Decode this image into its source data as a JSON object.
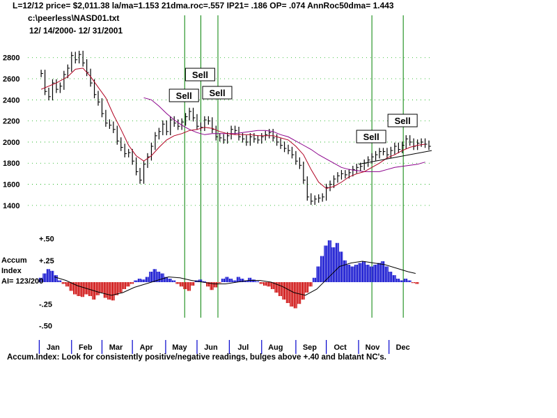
{
  "header": {
    "line1": "L=12/12  price= $2,011.38  la/ma=1.153 21dma.roc=.557 IP21= .186 OP= .074 AnnRoc50dma= 1.443",
    "file": "c:\\peerless\\NASD01.txt",
    "range": "12/ 14/2000- 12/ 31/2001"
  },
  "footer": {
    "note": "Accum.Index: Look for consistently positive/negative readings, bulges above +.40 and blatant NC's."
  },
  "colors": {
    "price_bars": "#000000",
    "ma21": "#b00020",
    "ma50": "#8b008b",
    "signal_lines": "#008000",
    "ai_positive": "#0000cc",
    "ai_negative": "#cc0000",
    "month_ticks": "#0000cc"
  },
  "chart_data": [
    {
      "type": "line",
      "name": "price",
      "ylim": [
        1300,
        2950
      ],
      "yticks": [
        "2800",
        "2600",
        "2400",
        "2200",
        "2000",
        "1800",
        "1600",
        "1400"
      ],
      "ytick_values": [
        2800,
        2600,
        2400,
        2200,
        2000,
        1800,
        1600,
        1400
      ],
      "months": [
        "Jan",
        "Feb",
        "Mar",
        "Apr",
        "May",
        "Jun",
        "Jul",
        "Aug",
        "Sep",
        "Oct",
        "Nov",
        "Dec"
      ],
      "signals": [
        {
          "label": "Sell",
          "day": 165
        },
        {
          "label": "Sell",
          "day": 182
        },
        {
          "label": "Sell",
          "day": 200
        },
        {
          "label": "Sell",
          "day": 362
        },
        {
          "label": "Sell",
          "day": 395
        }
      ],
      "closes": [
        [
          14,
          2650
        ],
        [
          18,
          2480
        ],
        [
          22,
          2430
        ],
        [
          26,
          2560
        ],
        [
          30,
          2500
        ],
        [
          34,
          2530
        ],
        [
          38,
          2640
        ],
        [
          42,
          2700
        ],
        [
          46,
          2820
        ],
        [
          50,
          2780
        ],
        [
          54,
          2830
        ],
        [
          58,
          2750
        ],
        [
          62,
          2660
        ],
        [
          66,
          2560
        ],
        [
          70,
          2450
        ],
        [
          74,
          2380
        ],
        [
          78,
          2270
        ],
        [
          82,
          2180
        ],
        [
          86,
          2160
        ],
        [
          90,
          2120
        ],
        [
          94,
          2010
        ],
        [
          98,
          1950
        ],
        [
          102,
          1890
        ],
        [
          106,
          1900
        ],
        [
          110,
          1820
        ],
        [
          114,
          1720
        ],
        [
          118,
          1640
        ],
        [
          122,
          1790
        ],
        [
          126,
          1860
        ],
        [
          130,
          1960
        ],
        [
          134,
          2060
        ],
        [
          138,
          2100
        ],
        [
          142,
          2170
        ],
        [
          146,
          2100
        ],
        [
          150,
          2210
        ],
        [
          154,
          2180
        ],
        [
          158,
          2150
        ],
        [
          162,
          2190
        ],
        [
          166,
          2240
        ],
        [
          170,
          2290
        ],
        [
          174,
          2230
        ],
        [
          178,
          2150
        ],
        [
          182,
          2140
        ],
        [
          186,
          2210
        ],
        [
          190,
          2200
        ],
        [
          194,
          2120
        ],
        [
          198,
          2050
        ],
        [
          202,
          2040
        ],
        [
          206,
          2020
        ],
        [
          210,
          2060
        ],
        [
          214,
          2120
        ],
        [
          218,
          2110
        ],
        [
          222,
          2050
        ],
        [
          226,
          2030
        ],
        [
          230,
          2000
        ],
        [
          234,
          2050
        ],
        [
          238,
          2030
        ],
        [
          242,
          2020
        ],
        [
          246,
          2050
        ],
        [
          250,
          2070
        ],
        [
          254,
          2090
        ],
        [
          258,
          2040
        ],
        [
          262,
          2000
        ],
        [
          266,
          1970
        ],
        [
          270,
          1940
        ],
        [
          274,
          1920
        ],
        [
          278,
          1880
        ],
        [
          282,
          1820
        ],
        [
          286,
          1780
        ],
        [
          290,
          1640
        ],
        [
          294,
          1480
        ],
        [
          298,
          1440
        ],
        [
          302,
          1460
        ],
        [
          306,
          1470
        ],
        [
          310,
          1480
        ],
        [
          314,
          1570
        ],
        [
          318,
          1600
        ],
        [
          322,
          1650
        ],
        [
          326,
          1680
        ],
        [
          330,
          1700
        ],
        [
          334,
          1690
        ],
        [
          338,
          1710
        ],
        [
          342,
          1740
        ],
        [
          346,
          1760
        ],
        [
          350,
          1770
        ],
        [
          354,
          1800
        ],
        [
          358,
          1830
        ],
        [
          362,
          1860
        ],
        [
          366,
          1880
        ],
        [
          370,
          1910
        ],
        [
          374,
          1910
        ],
        [
          378,
          1880
        ],
        [
          382,
          1920
        ],
        [
          386,
          1960
        ],
        [
          390,
          1930
        ],
        [
          394,
          1970
        ],
        [
          398,
          2030
        ],
        [
          402,
          2000
        ],
        [
          406,
          1960
        ],
        [
          410,
          1990
        ],
        [
          414,
          2000
        ],
        [
          418,
          1980
        ],
        [
          422,
          1960
        ]
      ],
      "ma21": [
        [
          14,
          2500
        ],
        [
          30,
          2560
        ],
        [
          42,
          2620
        ],
        [
          50,
          2690
        ],
        [
          58,
          2700
        ],
        [
          66,
          2620
        ],
        [
          74,
          2520
        ],
        [
          82,
          2420
        ],
        [
          90,
          2260
        ],
        [
          98,
          2120
        ],
        [
          106,
          1970
        ],
        [
          114,
          1870
        ],
        [
          122,
          1820
        ],
        [
          130,
          1870
        ],
        [
          138,
          1950
        ],
        [
          146,
          2020
        ],
        [
          154,
          2060
        ],
        [
          162,
          2080
        ],
        [
          170,
          2110
        ],
        [
          178,
          2120
        ],
        [
          186,
          2140
        ],
        [
          194,
          2130
        ],
        [
          202,
          2100
        ],
        [
          210,
          2080
        ],
        [
          218,
          2070
        ],
        [
          226,
          2070
        ],
        [
          234,
          2070
        ],
        [
          242,
          2060
        ],
        [
          250,
          2060
        ],
        [
          258,
          2060
        ],
        [
          266,
          2040
        ],
        [
          274,
          2020
        ],
        [
          282,
          1960
        ],
        [
          290,
          1880
        ],
        [
          298,
          1740
        ],
        [
          306,
          1620
        ],
        [
          314,
          1560
        ],
        [
          322,
          1580
        ],
        [
          330,
          1620
        ],
        [
          338,
          1670
        ],
        [
          346,
          1700
        ],
        [
          354,
          1720
        ],
        [
          362,
          1760
        ],
        [
          370,
          1800
        ],
        [
          378,
          1850
        ],
        [
          386,
          1880
        ],
        [
          394,
          1920
        ],
        [
          402,
          1950
        ],
        [
          410,
          1970
        ],
        [
          418,
          1980
        ]
      ],
      "ma50": [
        [
          122,
          2420
        ],
        [
          130,
          2400
        ],
        [
          138,
          2340
        ],
        [
          146,
          2270
        ],
        [
          154,
          2210
        ],
        [
          162,
          2160
        ],
        [
          170,
          2120
        ],
        [
          178,
          2090
        ],
        [
          186,
          2070
        ],
        [
          194,
          2080
        ],
        [
          202,
          2080
        ],
        [
          210,
          2080
        ],
        [
          218,
          2080
        ],
        [
          226,
          2090
        ],
        [
          234,
          2100
        ],
        [
          242,
          2110
        ],
        [
          250,
          2110
        ],
        [
          258,
          2100
        ],
        [
          266,
          2070
        ],
        [
          274,
          2050
        ],
        [
          282,
          2010
        ],
        [
          290,
          1970
        ],
        [
          298,
          1930
        ],
        [
          306,
          1880
        ],
        [
          314,
          1840
        ],
        [
          322,
          1800
        ],
        [
          330,
          1760
        ],
        [
          338,
          1740
        ],
        [
          346,
          1730
        ],
        [
          354,
          1720
        ],
        [
          362,
          1720
        ],
        [
          370,
          1720
        ],
        [
          378,
          1740
        ],
        [
          386,
          1760
        ],
        [
          394,
          1770
        ],
        [
          402,
          1780
        ],
        [
          410,
          1790
        ],
        [
          418,
          1810
        ]
      ],
      "trendline": [
        [
          348,
          1790
        ],
        [
          425,
          1920
        ]
      ]
    },
    {
      "type": "bar",
      "name": "Accum Index",
      "title_line1": "Accum",
      "title_line2": "Index",
      "reading": "AI= 123/200",
      "ylim": [
        -0.6,
        0.6
      ],
      "yticks": [
        "+.50",
        "+.25",
        "-.25",
        "-.50"
      ],
      "ytick_values": [
        0.5,
        0.25,
        -0.25,
        -0.5
      ],
      "values": [
        [
          12,
          0.05
        ],
        [
          16,
          0.1
        ],
        [
          20,
          0.15
        ],
        [
          24,
          0.13
        ],
        [
          28,
          0.08
        ],
        [
          32,
          0.02
        ],
        [
          36,
          -0.02
        ],
        [
          40,
          -0.05
        ],
        [
          44,
          -0.1
        ],
        [
          48,
          -0.14
        ],
        [
          52,
          -0.16
        ],
        [
          56,
          -0.17
        ],
        [
          60,
          -0.14
        ],
        [
          64,
          -0.16
        ],
        [
          68,
          -0.2
        ],
        [
          72,
          -0.15
        ],
        [
          76,
          -0.12
        ],
        [
          80,
          -0.18
        ],
        [
          84,
          -0.2
        ],
        [
          88,
          -0.21
        ],
        [
          92,
          -0.15
        ],
        [
          96,
          -0.12
        ],
        [
          100,
          -0.08
        ],
        [
          104,
          -0.05
        ],
        [
          108,
          -0.02
        ],
        [
          112,
          0.02
        ],
        [
          116,
          0.04
        ],
        [
          120,
          0.03
        ],
        [
          124,
          0.06
        ],
        [
          128,
          0.12
        ],
        [
          132,
          0.15
        ],
        [
          136,
          0.12
        ],
        [
          140,
          0.1
        ],
        [
          144,
          0.06
        ],
        [
          148,
          0.04
        ],
        [
          152,
          0.02
        ],
        [
          156,
          -0.02
        ],
        [
          160,
          -0.05
        ],
        [
          164,
          -0.08
        ],
        [
          168,
          -0.1
        ],
        [
          172,
          -0.04
        ],
        [
          176,
          0.02
        ],
        [
          180,
          0.03
        ],
        [
          184,
          0.01
        ],
        [
          188,
          -0.05
        ],
        [
          192,
          -0.09
        ],
        [
          196,
          -0.06
        ],
        [
          200,
          -0.01
        ],
        [
          204,
          0.04
        ],
        [
          208,
          0.06
        ],
        [
          212,
          0.04
        ],
        [
          216,
          0.02
        ],
        [
          220,
          0.06
        ],
        [
          224,
          0.04
        ],
        [
          228,
          0.02
        ],
        [
          232,
          0.05
        ],
        [
          236,
          0.03
        ],
        [
          240,
          0.01
        ],
        [
          244,
          -0.02
        ],
        [
          248,
          -0.04
        ],
        [
          252,
          -0.05
        ],
        [
          256,
          -0.08
        ],
        [
          260,
          -0.12
        ],
        [
          264,
          -0.16
        ],
        [
          268,
          -0.2
        ],
        [
          272,
          -0.24
        ],
        [
          276,
          -0.28
        ],
        [
          280,
          -0.3
        ],
        [
          284,
          -0.25
        ],
        [
          288,
          -0.2
        ],
        [
          292,
          -0.12
        ],
        [
          296,
          -0.05
        ],
        [
          300,
          0.05
        ],
        [
          304,
          0.18
        ],
        [
          308,
          0.3
        ],
        [
          312,
          0.42
        ],
        [
          316,
          0.48
        ],
        [
          320,
          0.4
        ],
        [
          324,
          0.45
        ],
        [
          328,
          0.35
        ],
        [
          332,
          0.25
        ],
        [
          336,
          0.2
        ],
        [
          340,
          0.18
        ],
        [
          344,
          0.2
        ],
        [
          348,
          0.22
        ],
        [
          352,
          0.24
        ],
        [
          356,
          0.2
        ],
        [
          360,
          0.18
        ],
        [
          364,
          0.2
        ],
        [
          368,
          0.22
        ],
        [
          372,
          0.24
        ],
        [
          376,
          0.18
        ],
        [
          380,
          0.12
        ],
        [
          384,
          0.08
        ],
        [
          388,
          0.04
        ],
        [
          392,
          0.02
        ],
        [
          396,
          0.04
        ],
        [
          400,
          0.02
        ],
        [
          404,
          -0.01
        ],
        [
          408,
          -0.02
        ]
      ],
      "ma": [
        [
          28,
          0.06
        ],
        [
          40,
          0.02
        ],
        [
          52,
          -0.04
        ],
        [
          64,
          -0.08
        ],
        [
          76,
          -0.12
        ],
        [
          88,
          -0.15
        ],
        [
          100,
          -0.12
        ],
        [
          112,
          -0.06
        ],
        [
          124,
          -0.02
        ],
        [
          136,
          0.02
        ],
        [
          148,
          0.06
        ],
        [
          160,
          0.05
        ],
        [
          172,
          0.02
        ],
        [
          184,
          0.0
        ],
        [
          196,
          -0.02
        ],
        [
          208,
          -0.02
        ],
        [
          220,
          0.0
        ],
        [
          232,
          0.02
        ],
        [
          244,
          0.02
        ],
        [
          256,
          0.0
        ],
        [
          268,
          -0.05
        ],
        [
          280,
          -0.12
        ],
        [
          292,
          -0.15
        ],
        [
          304,
          -0.08
        ],
        [
          316,
          0.05
        ],
        [
          328,
          0.18
        ],
        [
          340,
          0.22
        ],
        [
          352,
          0.24
        ],
        [
          364,
          0.22
        ],
        [
          376,
          0.2
        ],
        [
          388,
          0.16
        ],
        [
          400,
          0.12
        ],
        [
          408,
          0.1
        ]
      ]
    }
  ]
}
